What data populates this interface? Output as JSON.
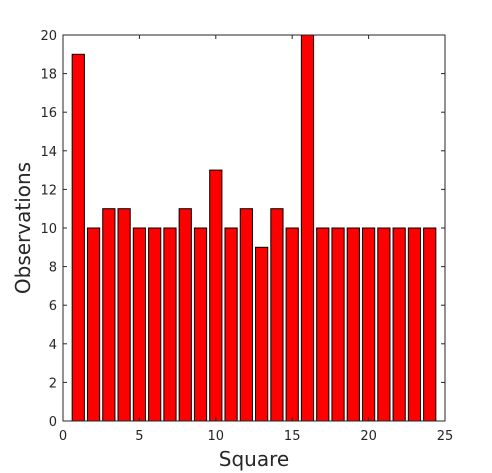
{
  "chart_data": {
    "type": "bar",
    "title": "",
    "xlabel": "Square",
    "ylabel": "Observations",
    "x": [
      1,
      2,
      3,
      4,
      5,
      6,
      7,
      8,
      9,
      10,
      11,
      12,
      13,
      14,
      15,
      16,
      17,
      18,
      19,
      20,
      21,
      22,
      23,
      24
    ],
    "values": [
      19,
      10,
      11,
      11,
      10,
      10,
      10,
      11,
      10,
      13,
      10,
      11,
      9,
      11,
      10,
      20,
      10,
      10,
      10,
      10,
      10,
      10,
      10,
      10
    ],
    "xlim": [
      0,
      25
    ],
    "ylim": [
      0,
      20
    ],
    "xticks": [
      0,
      5,
      10,
      15,
      20,
      25
    ],
    "yticks": [
      0,
      2,
      4,
      6,
      8,
      10,
      12,
      14,
      16,
      18,
      20
    ],
    "grid": false,
    "bar_color": "#ff0000",
    "bar_edge_color": "#000000",
    "axis_color": "#262626"
  }
}
